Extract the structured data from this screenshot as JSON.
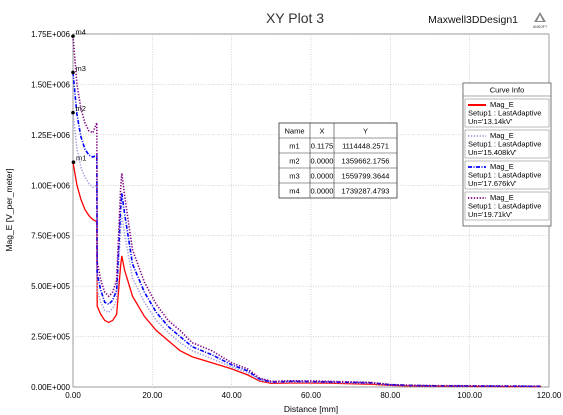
{
  "chart_data": {
    "type": "line",
    "title": "XY Plot 3",
    "design_name": "Maxwell3DDesign1",
    "logo_text": "ANSOFT",
    "xlabel": "Distance [mm]",
    "ylabel": "Mag_E [V_per_meter]",
    "xlim": [
      0,
      120
    ],
    "ylim": [
      0,
      1750000
    ],
    "x_ticks": [
      0,
      20,
      40,
      60,
      80,
      100,
      120
    ],
    "x_tick_labels": [
      "0.00",
      "20.00",
      "40.00",
      "60.00",
      "80.00",
      "100.00",
      "120.00"
    ],
    "y_ticks": [
      0,
      250000,
      500000,
      750000,
      1000000,
      1250000,
      1500000,
      1750000
    ],
    "y_tick_labels": [
      "0.00E+000",
      "2.50E+005",
      "5.00E+005",
      "7.50E+005",
      "1.00E+006",
      "1.25E+006",
      "1.50E+006",
      "1.75E+006"
    ],
    "grid": true,
    "legend": {
      "title": "Curve Info",
      "placement": "right"
    },
    "series": [
      {
        "name": "Mag_E",
        "info1": "Setup1 : LastAdaptive",
        "info2": "Un='13.14kV'",
        "color": "#ff0000",
        "dash": "solid",
        "points": [
          [
            0,
            1114000
          ],
          [
            1,
            1000000
          ],
          [
            2,
            930000
          ],
          [
            3,
            880000
          ],
          [
            4,
            850000
          ],
          [
            5,
            830000
          ],
          [
            6,
            820000
          ],
          [
            6.1,
            400000
          ],
          [
            7,
            360000
          ],
          [
            8,
            330000
          ],
          [
            9,
            320000
          ],
          [
            10,
            330000
          ],
          [
            11,
            360000
          ],
          [
            12,
            600000
          ],
          [
            12.3,
            650000
          ],
          [
            13,
            580000
          ],
          [
            15,
            450000
          ],
          [
            18,
            350000
          ],
          [
            21,
            280000
          ],
          [
            24,
            230000
          ],
          [
            27,
            180000
          ],
          [
            30,
            150000
          ],
          [
            35,
            120000
          ],
          [
            40,
            90000
          ],
          [
            44,
            60000
          ],
          [
            47,
            30000
          ],
          [
            50,
            18000
          ],
          [
            55,
            20000
          ],
          [
            60,
            20000
          ],
          [
            65,
            19000
          ],
          [
            70,
            16000
          ],
          [
            75,
            14000
          ],
          [
            80,
            8000
          ],
          [
            85,
            5000
          ],
          [
            90,
            4000
          ],
          [
            100,
            3000
          ],
          [
            110,
            2000
          ],
          [
            118,
            2000
          ]
        ]
      },
      {
        "name": "Mag_E",
        "info1": "Setup1 : LastAdaptive",
        "info2": "Un='15.408kV'",
        "color": "#a0a0dc",
        "dash": "dot",
        "points": [
          [
            0,
            1360000
          ],
          [
            1,
            1180000
          ],
          [
            2,
            1090000
          ],
          [
            3,
            1040000
          ],
          [
            4,
            1010000
          ],
          [
            5,
            990000
          ],
          [
            6,
            1000000
          ],
          [
            6.1,
            480000
          ],
          [
            7,
            420000
          ],
          [
            8,
            380000
          ],
          [
            9,
            370000
          ],
          [
            10,
            390000
          ],
          [
            11,
            430000
          ],
          [
            12,
            780000
          ],
          [
            12.3,
            850000
          ],
          [
            13,
            760000
          ],
          [
            15,
            540000
          ],
          [
            18,
            420000
          ],
          [
            21,
            330000
          ],
          [
            24,
            270000
          ],
          [
            27,
            220000
          ],
          [
            30,
            180000
          ],
          [
            35,
            140000
          ],
          [
            40,
            100000
          ],
          [
            44,
            70000
          ],
          [
            47,
            35000
          ],
          [
            50,
            22000
          ],
          [
            55,
            24000
          ],
          [
            60,
            24000
          ],
          [
            65,
            22000
          ],
          [
            70,
            20000
          ],
          [
            75,
            18000
          ],
          [
            80,
            10000
          ],
          [
            85,
            7000
          ],
          [
            90,
            5000
          ],
          [
            100,
            4000
          ],
          [
            110,
            3000
          ],
          [
            118,
            3000
          ]
        ]
      },
      {
        "name": "Mag_E",
        "info1": "Setup1 : LastAdaptive",
        "info2": "Un='17.676kV'",
        "color": "#0000ff",
        "dash": "dashdot",
        "points": [
          [
            0,
            1560000
          ],
          [
            1,
            1350000
          ],
          [
            2,
            1240000
          ],
          [
            3,
            1180000
          ],
          [
            4,
            1150000
          ],
          [
            5,
            1140000
          ],
          [
            6,
            1150000
          ],
          [
            6.1,
            560000
          ],
          [
            7,
            480000
          ],
          [
            8,
            420000
          ],
          [
            9,
            410000
          ],
          [
            10,
            430000
          ],
          [
            11,
            480000
          ],
          [
            12,
            880000
          ],
          [
            12.3,
            960000
          ],
          [
            13,
            860000
          ],
          [
            15,
            610000
          ],
          [
            18,
            470000
          ],
          [
            21,
            370000
          ],
          [
            24,
            300000
          ],
          [
            27,
            250000
          ],
          [
            30,
            200000
          ],
          [
            35,
            160000
          ],
          [
            40,
            110000
          ],
          [
            44,
            80000
          ],
          [
            47,
            40000
          ],
          [
            50,
            25000
          ],
          [
            55,
            28000
          ],
          [
            60,
            27000
          ],
          [
            65,
            25000
          ],
          [
            70,
            23000
          ],
          [
            75,
            21000
          ],
          [
            80,
            11000
          ],
          [
            85,
            8000
          ],
          [
            90,
            6000
          ],
          [
            100,
            5000
          ],
          [
            110,
            4000
          ],
          [
            118,
            3500
          ]
        ]
      },
      {
        "name": "Mag_E",
        "info1": "Setup1 : LastAdaptive",
        "info2": "Un='19.71kV'",
        "color": "#800080",
        "dash": "dot",
        "points": [
          [
            0,
            1739000
          ],
          [
            1,
            1500000
          ],
          [
            2,
            1380000
          ],
          [
            3,
            1310000
          ],
          [
            4,
            1270000
          ],
          [
            5,
            1260000
          ],
          [
            6,
            1310000
          ],
          [
            6.1,
            620000
          ],
          [
            7,
            530000
          ],
          [
            8,
            470000
          ],
          [
            9,
            450000
          ],
          [
            10,
            470000
          ],
          [
            11,
            530000
          ],
          [
            12,
            980000
          ],
          [
            12.3,
            1060000
          ],
          [
            13,
            950000
          ],
          [
            15,
            680000
          ],
          [
            18,
            520000
          ],
          [
            21,
            410000
          ],
          [
            24,
            330000
          ],
          [
            27,
            280000
          ],
          [
            30,
            220000
          ],
          [
            35,
            180000
          ],
          [
            40,
            120000
          ],
          [
            44,
            90000
          ],
          [
            47,
            45000
          ],
          [
            50,
            28000
          ],
          [
            55,
            31000
          ],
          [
            60,
            30000
          ],
          [
            65,
            28000
          ],
          [
            70,
            25000
          ],
          [
            75,
            23000
          ],
          [
            80,
            12000
          ],
          [
            85,
            9000
          ],
          [
            90,
            7000
          ],
          [
            100,
            6000
          ],
          [
            110,
            5000
          ],
          [
            118,
            4000
          ]
        ]
      }
    ],
    "markers": [
      {
        "name": "m1",
        "x": 0.1175,
        "y": 1114448.2571,
        "series": 0
      },
      {
        "name": "m2",
        "x": 0.0,
        "y": 1359662.1756,
        "series": 1
      },
      {
        "name": "m3",
        "x": 0.0,
        "y": 1559799.3644,
        "series": 2
      },
      {
        "name": "m4",
        "x": 0.0,
        "y": 1739287.4793,
        "series": 3
      }
    ],
    "marker_table": {
      "headers": [
        "Name",
        "X",
        "Y"
      ],
      "rows": [
        [
          "m1",
          "0.1175",
          "1114448.2571"
        ],
        [
          "m2",
          "0.0000",
          "1359662.1756"
        ],
        [
          "m3",
          "0.0000",
          "1559799.3644"
        ],
        [
          "m4",
          "0.0000",
          "1739287.4793"
        ]
      ]
    }
  }
}
